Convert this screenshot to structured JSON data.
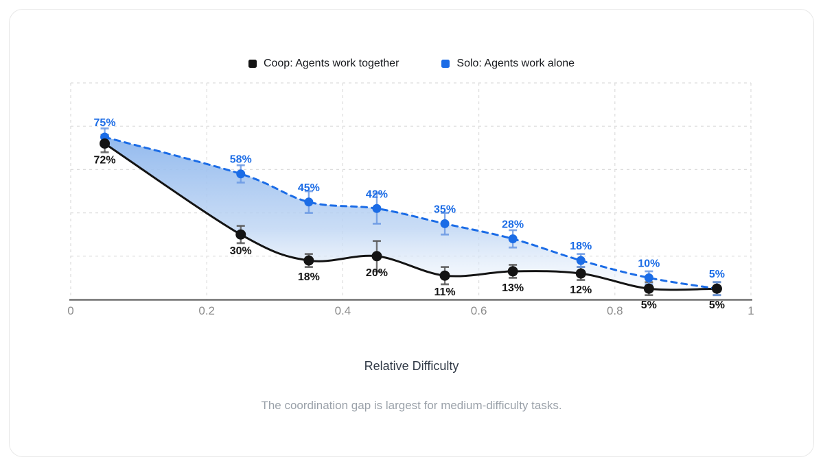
{
  "legend": {
    "items": [
      {
        "label": "Coop: Agents work together",
        "color": "#141414"
      },
      {
        "label": "Solo: Agents work alone",
        "color": "#1b6ce6"
      }
    ]
  },
  "chart_data": {
    "type": "line",
    "x": [
      0.05,
      0.25,
      0.35,
      0.45,
      0.55,
      0.65,
      0.75,
      0.85,
      0.95
    ],
    "series": [
      {
        "name": "Coop: Agents work together",
        "values": [
          72,
          30,
          18,
          20,
          11,
          13,
          12,
          5,
          5
        ],
        "labels": [
          "72%",
          "30%",
          "18%",
          "20%",
          "11%",
          "13%",
          "12%",
          "5%",
          "5%"
        ],
        "errors": [
          4,
          4,
          3,
          7,
          4,
          3,
          3,
          3,
          3
        ],
        "color": "#141414",
        "error_color": "#5a5a5a",
        "line_style": "solid",
        "label_position": "below"
      },
      {
        "name": "Solo: Agents work alone",
        "values": [
          75,
          58,
          45,
          42,
          35,
          28,
          18,
          10,
          5
        ],
        "labels": [
          "75%",
          "58%",
          "45%",
          "42%",
          "35%",
          "28%",
          "18%",
          "10%",
          "5%"
        ],
        "errors": [
          4,
          4,
          5,
          7,
          5,
          4,
          3,
          3,
          3
        ],
        "color": "#1b6ce6",
        "error_color": "#6c9ae4",
        "line_style": "dashed",
        "label_position": "above"
      }
    ],
    "fill_between": {
      "upper": "Solo: Agents work alone",
      "lower": "Coop: Agents work together",
      "gradient_top": "#8db6ed",
      "gradient_bottom": "#f4f8fd"
    },
    "xlabel": "Relative Difficulty",
    "caption": "The coordination gap is largest for medium-difficulty tasks.",
    "xticks": {
      "values": [
        0,
        0.2,
        0.4,
        0.6,
        0.8,
        1
      ],
      "labels": [
        "0",
        "0.2",
        "0.4",
        "0.6",
        "0.8",
        "1"
      ]
    },
    "xlim": [
      0,
      1
    ],
    "ylim": [
      0,
      100
    ],
    "grid": true,
    "grid_color": "#dcdcdc",
    "axis_color": "#707070",
    "tick_label_color": "#8c8c8c",
    "legend_position": "top"
  }
}
